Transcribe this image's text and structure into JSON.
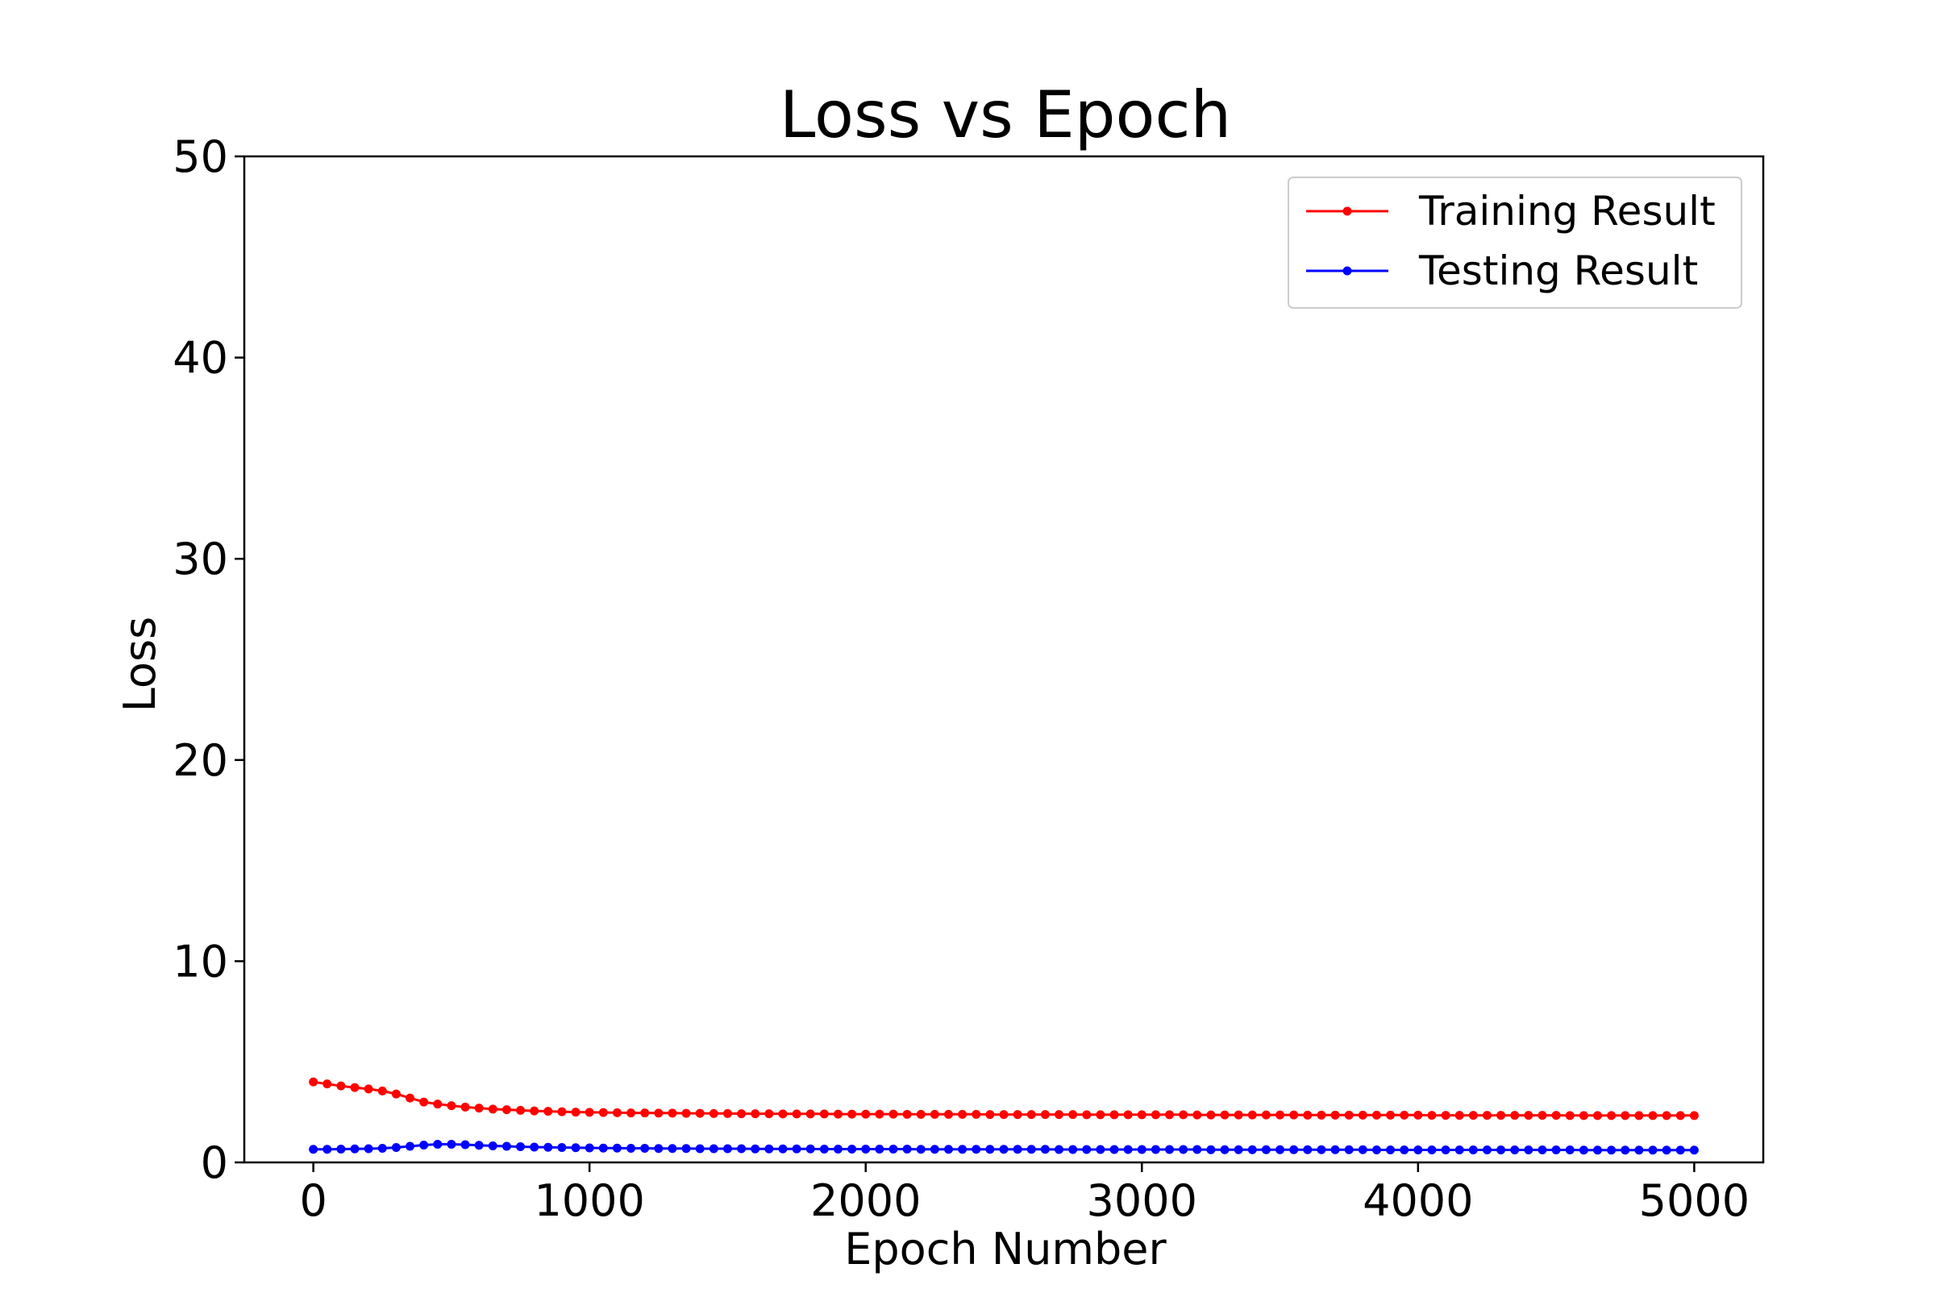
{
  "chart_data": {
    "type": "line",
    "title": "Loss vs Epoch",
    "xlabel": "Epoch Number",
    "ylabel": "Loss",
    "xlim": [
      -250,
      5250
    ],
    "ylim": [
      0,
      50
    ],
    "xticks": [
      0,
      1000,
      2000,
      3000,
      4000,
      5000
    ],
    "yticks": [
      0,
      10,
      20,
      30,
      40,
      50
    ],
    "grid": false,
    "legend_position": "top-right",
    "x": [
      0,
      50,
      100,
      150,
      200,
      250,
      300,
      350,
      400,
      450,
      500,
      550,
      600,
      650,
      700,
      750,
      800,
      850,
      900,
      950,
      1000,
      1050,
      1100,
      1150,
      1200,
      1250,
      1300,
      1350,
      1400,
      1450,
      1500,
      1550,
      1600,
      1650,
      1700,
      1750,
      1800,
      1850,
      1900,
      1950,
      2000,
      2050,
      2100,
      2150,
      2200,
      2250,
      2300,
      2350,
      2400,
      2450,
      2500,
      2550,
      2600,
      2650,
      2700,
      2750,
      2800,
      2850,
      2900,
      2950,
      3000,
      3050,
      3100,
      3150,
      3200,
      3250,
      3300,
      3350,
      3400,
      3450,
      3500,
      3550,
      3600,
      3650,
      3700,
      3750,
      3800,
      3850,
      3900,
      3950,
      4000,
      4050,
      4100,
      4150,
      4200,
      4250,
      4300,
      4350,
      4400,
      4450,
      4500,
      4550,
      4600,
      4650,
      4700,
      4750,
      4800,
      4850,
      4900,
      4950,
      5000
    ],
    "series": [
      {
        "name": "Training Result",
        "color": "#ff0000",
        "values": [
          4.0,
          3.9,
          3.8,
          3.72,
          3.65,
          3.55,
          3.4,
          3.2,
          3.0,
          2.9,
          2.82,
          2.75,
          2.7,
          2.65,
          2.62,
          2.59,
          2.56,
          2.54,
          2.52,
          2.5,
          2.49,
          2.48,
          2.47,
          2.46,
          2.46,
          2.45,
          2.45,
          2.44,
          2.44,
          2.43,
          2.43,
          2.42,
          2.42,
          2.42,
          2.41,
          2.41,
          2.41,
          2.41,
          2.4,
          2.4,
          2.4,
          2.4,
          2.4,
          2.39,
          2.39,
          2.39,
          2.39,
          2.39,
          2.39,
          2.38,
          2.38,
          2.38,
          2.38,
          2.38,
          2.38,
          2.38,
          2.37,
          2.37,
          2.37,
          2.37,
          2.37,
          2.37,
          2.37,
          2.37,
          2.36,
          2.36,
          2.36,
          2.36,
          2.36,
          2.36,
          2.36,
          2.36,
          2.35,
          2.35,
          2.35,
          2.35,
          2.35,
          2.35,
          2.35,
          2.35,
          2.35,
          2.34,
          2.34,
          2.34,
          2.34,
          2.34,
          2.34,
          2.34,
          2.34,
          2.34,
          2.34,
          2.33,
          2.33,
          2.33,
          2.33,
          2.33,
          2.33,
          2.33,
          2.33,
          2.33,
          2.33
        ]
      },
      {
        "name": "Testing Result",
        "color": "#0000ff",
        "values": [
          0.65,
          0.65,
          0.66,
          0.67,
          0.68,
          0.7,
          0.74,
          0.8,
          0.86,
          0.9,
          0.9,
          0.88,
          0.85,
          0.82,
          0.8,
          0.78,
          0.76,
          0.75,
          0.74,
          0.73,
          0.72,
          0.71,
          0.71,
          0.7,
          0.7,
          0.69,
          0.69,
          0.69,
          0.68,
          0.68,
          0.68,
          0.68,
          0.67,
          0.67,
          0.67,
          0.67,
          0.67,
          0.66,
          0.66,
          0.66,
          0.66,
          0.66,
          0.66,
          0.66,
          0.65,
          0.65,
          0.65,
          0.65,
          0.65,
          0.65,
          0.65,
          0.65,
          0.65,
          0.65,
          0.64,
          0.64,
          0.64,
          0.64,
          0.64,
          0.64,
          0.64,
          0.64,
          0.64,
          0.64,
          0.64,
          0.63,
          0.63,
          0.63,
          0.63,
          0.63,
          0.63,
          0.63,
          0.63,
          0.63,
          0.63,
          0.63,
          0.63,
          0.62,
          0.62,
          0.62,
          0.62,
          0.62,
          0.62,
          0.62,
          0.62,
          0.62,
          0.62,
          0.62,
          0.62,
          0.62,
          0.62,
          0.62,
          0.61,
          0.61,
          0.61,
          0.61,
          0.61,
          0.61,
          0.61,
          0.61,
          0.61
        ]
      }
    ]
  }
}
